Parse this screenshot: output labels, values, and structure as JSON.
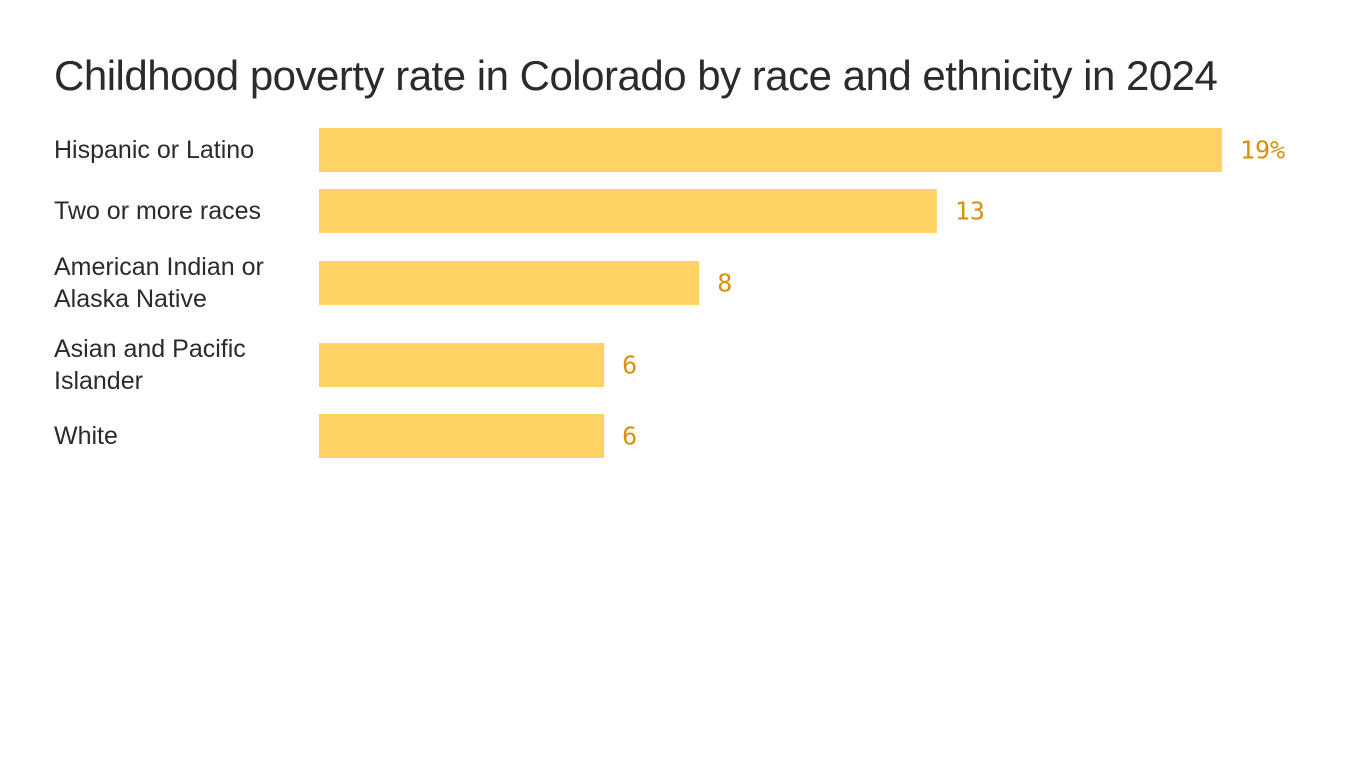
{
  "chart_data": {
    "type": "bar",
    "orientation": "horizontal",
    "title": "Childhood poverty rate in Colorado by race and ethnicity in 2024",
    "categories": [
      "Hispanic or Latino",
      "Two or more races",
      "American Indian or Alaska Native",
      "Asian and Pacific Islander",
      "White"
    ],
    "category_lines": [
      [
        "Hispanic or Latino"
      ],
      [
        "Two or more races"
      ],
      [
        "American Indian or",
        "Alaska Native"
      ],
      [
        "Asian and Pacific",
        "Islander"
      ],
      [
        "White"
      ]
    ],
    "values": [
      19,
      13,
      8,
      6,
      6
    ],
    "value_labels": [
      "19%",
      "13",
      "8",
      "6",
      "6"
    ],
    "unit": "%",
    "xlim": [
      0,
      19
    ],
    "grid": false,
    "legend": "none",
    "colors": {
      "bar": "#fed263",
      "value_text": "#d9900f",
      "label_text": "#2b2b2b"
    }
  }
}
